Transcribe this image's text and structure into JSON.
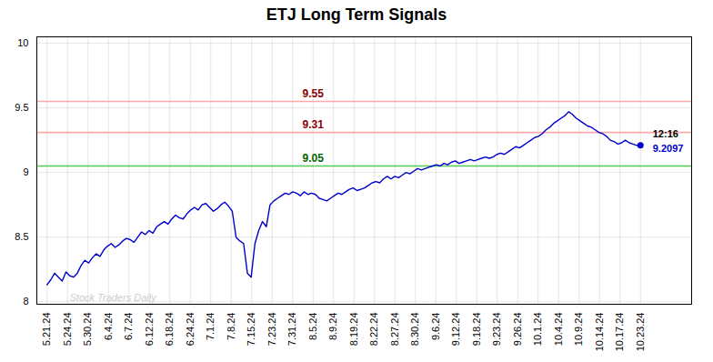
{
  "chart_data": {
    "type": "line",
    "title": "ETJ Long Term Signals",
    "color": "#0000cc",
    "values": [
      8.13,
      8.17,
      8.22,
      8.19,
      8.16,
      8.23,
      8.2,
      8.19,
      8.22,
      8.28,
      8.32,
      8.3,
      8.34,
      8.37,
      8.35,
      8.4,
      8.43,
      8.45,
      8.42,
      8.44,
      8.47,
      8.49,
      8.48,
      8.46,
      8.5,
      8.54,
      8.52,
      8.55,
      8.53,
      8.58,
      8.6,
      8.62,
      8.6,
      8.64,
      8.67,
      8.65,
      8.64,
      8.68,
      8.71,
      8.73,
      8.71,
      8.75,
      8.76,
      8.73,
      8.7,
      8.72,
      8.75,
      8.77,
      8.74,
      8.7,
      8.5,
      8.47,
      8.45,
      8.22,
      8.19,
      8.45,
      8.55,
      8.62,
      8.58,
      8.75,
      8.78,
      8.8,
      8.82,
      8.84,
      8.83,
      8.85,
      8.84,
      8.82,
      8.85,
      8.83,
      8.84,
      8.83,
      8.8,
      8.79,
      8.78,
      8.8,
      8.82,
      8.84,
      8.83,
      8.85,
      8.87,
      8.88,
      8.86,
      8.87,
      8.88,
      8.9,
      8.92,
      8.93,
      8.92,
      8.95,
      8.97,
      8.95,
      8.97,
      8.96,
      8.98,
      9.0,
      8.99,
      9.01,
      9.03,
      9.02,
      9.03,
      9.04,
      9.05,
      9.06,
      9.05,
      9.07,
      9.06,
      9.08,
      9.09,
      9.07,
      9.08,
      9.09,
      9.1,
      9.09,
      9.1,
      9.11,
      9.12,
      9.11,
      9.12,
      9.14,
      9.15,
      9.14,
      9.16,
      9.18,
      9.2,
      9.19,
      9.21,
      9.23,
      9.25,
      9.27,
      9.28,
      9.3,
      9.33,
      9.35,
      9.38,
      9.4,
      9.42,
      9.44,
      9.47,
      9.45,
      9.42,
      9.4,
      9.38,
      9.36,
      9.35,
      9.33,
      9.31,
      9.3,
      9.28,
      9.25,
      9.24,
      9.22,
      9.23,
      9.25,
      9.23,
      9.22,
      9.21,
      9.2097
    ],
    "xlim": [
      -0.5,
      31.5
    ],
    "xticks": [
      {
        "value": 0,
        "label": "5.21.24"
      },
      {
        "value": 1,
        "label": "5.24.24"
      },
      {
        "value": 2,
        "label": "5.30.24"
      },
      {
        "value": 3,
        "label": "6.4.24"
      },
      {
        "value": 4,
        "label": "6.7.24"
      },
      {
        "value": 5,
        "label": "6.12.24"
      },
      {
        "value": 6,
        "label": "6.18.24"
      },
      {
        "value": 7,
        "label": "6.24.24"
      },
      {
        "value": 8,
        "label": "7.1.24"
      },
      {
        "value": 9,
        "label": "7.8.24"
      },
      {
        "value": 10,
        "label": "7.15.24"
      },
      {
        "value": 11,
        "label": "7.23.24"
      },
      {
        "value": 12,
        "label": "7.31.24"
      },
      {
        "value": 13,
        "label": "8.5.24"
      },
      {
        "value": 14,
        "label": "8.9.24"
      },
      {
        "value": 15,
        "label": "8.19.24"
      },
      {
        "value": 16,
        "label": "8.22.24"
      },
      {
        "value": 17,
        "label": "8.27.24"
      },
      {
        "value": 18,
        "label": "8.30.24"
      },
      {
        "value": 19,
        "label": "9.6.24"
      },
      {
        "value": 20,
        "label": "9.12.24"
      },
      {
        "value": 21,
        "label": "9.18.24"
      },
      {
        "value": 22,
        "label": "9.23.24"
      },
      {
        "value": 23,
        "label": "9.26.24"
      },
      {
        "value": 24,
        "label": "10.1.24"
      },
      {
        "value": 25,
        "label": "10.4.24"
      },
      {
        "value": 26,
        "label": "10.9.24"
      },
      {
        "value": 27,
        "label": "10.14.24"
      },
      {
        "value": 28,
        "label": "10.17.24"
      },
      {
        "value": 29,
        "label": "10.23.24"
      }
    ],
    "ylim": [
      7.98,
      10.05
    ],
    "yticks": [
      8,
      8.5,
      9,
      9.5,
      10
    ],
    "grid": true,
    "hlines": [
      {
        "value": 9.55,
        "label": "9.55",
        "color": "#ffaaaa",
        "label_color": "#880000"
      },
      {
        "value": 9.31,
        "label": "9.31",
        "color": "#ffaaaa",
        "label_color": "#880000"
      },
      {
        "value": 9.05,
        "label": "9.05",
        "color": "#55cc55",
        "label_color": "#006600"
      }
    ],
    "end_labels": [
      {
        "text": "12:16",
        "color": "#000000"
      },
      {
        "text": "9.2097",
        "color": "#0000cc"
      }
    ],
    "watermark": {
      "text": "Stock Traders Daily",
      "color": "#cccccc"
    }
  }
}
